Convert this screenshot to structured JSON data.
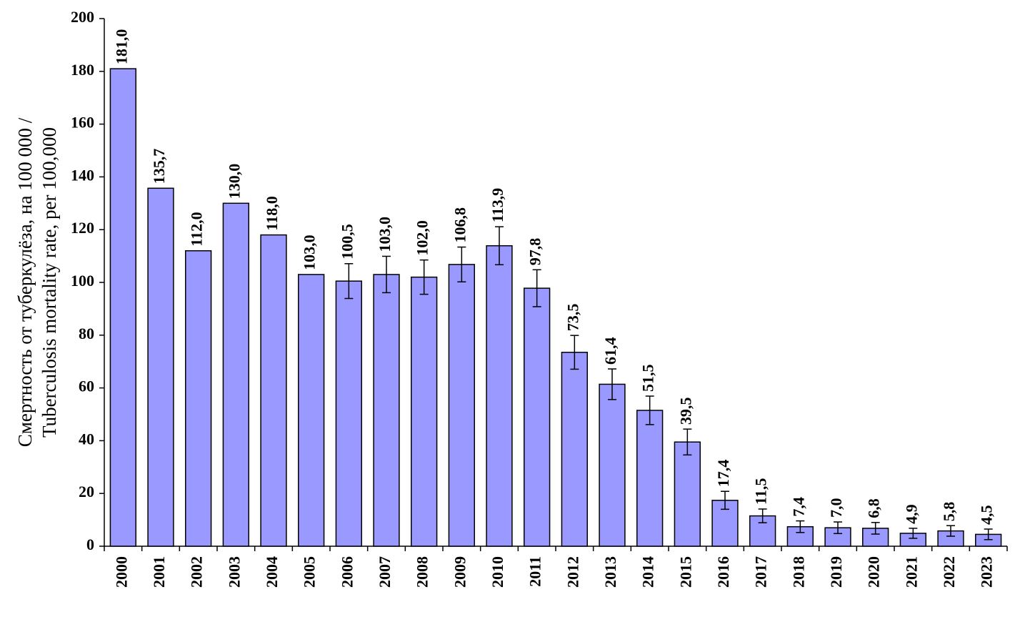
{
  "chart_data": {
    "type": "bar",
    "ylabel": [
      "Смертность от туберкулёза, на 100 000 /",
      "Tuberculosis mortality rate, per 100,000"
    ],
    "categories": [
      "2000",
      "2001",
      "2002",
      "2003",
      "2004",
      "2005",
      "2006",
      "2007",
      "2008",
      "2009",
      "2010",
      "2011",
      "2012",
      "2013",
      "2014",
      "2015",
      "2016",
      "2017",
      "2018",
      "2019",
      "2020",
      "2021",
      "2022",
      "2023"
    ],
    "values": [
      181.0,
      135.7,
      112.0,
      130.0,
      118.0,
      103.0,
      100.5,
      103.0,
      102.0,
      106.8,
      113.9,
      97.8,
      73.5,
      61.4,
      51.5,
      39.5,
      17.4,
      11.5,
      7.4,
      7.0,
      6.8,
      4.9,
      5.8,
      4.5
    ],
    "value_labels": [
      "181,0",
      "135,7",
      "112,0",
      "130,0",
      "118,0",
      "103,0",
      "100,5",
      "103,0",
      "102,0",
      "106,8",
      "113,9",
      "97,8",
      "73,5",
      "61,4",
      "51,5",
      "39,5",
      "17,4",
      "11,5",
      "7,4",
      "7,0",
      "6,8",
      "4,9",
      "5,8",
      "4,5"
    ],
    "errors": [
      null,
      null,
      null,
      null,
      null,
      null,
      6.6,
      6.9,
      6.5,
      6.6,
      7.2,
      7.0,
      6.4,
      5.8,
      5.4,
      4.9,
      3.4,
      2.6,
      2.2,
      2.2,
      2.2,
      1.9,
      2.0,
      2.0
    ],
    "color": "#9999ff",
    "ylim": [
      0,
      200
    ],
    "yticks": [
      0,
      20,
      40,
      60,
      80,
      100,
      120,
      140,
      160,
      180,
      200
    ]
  }
}
